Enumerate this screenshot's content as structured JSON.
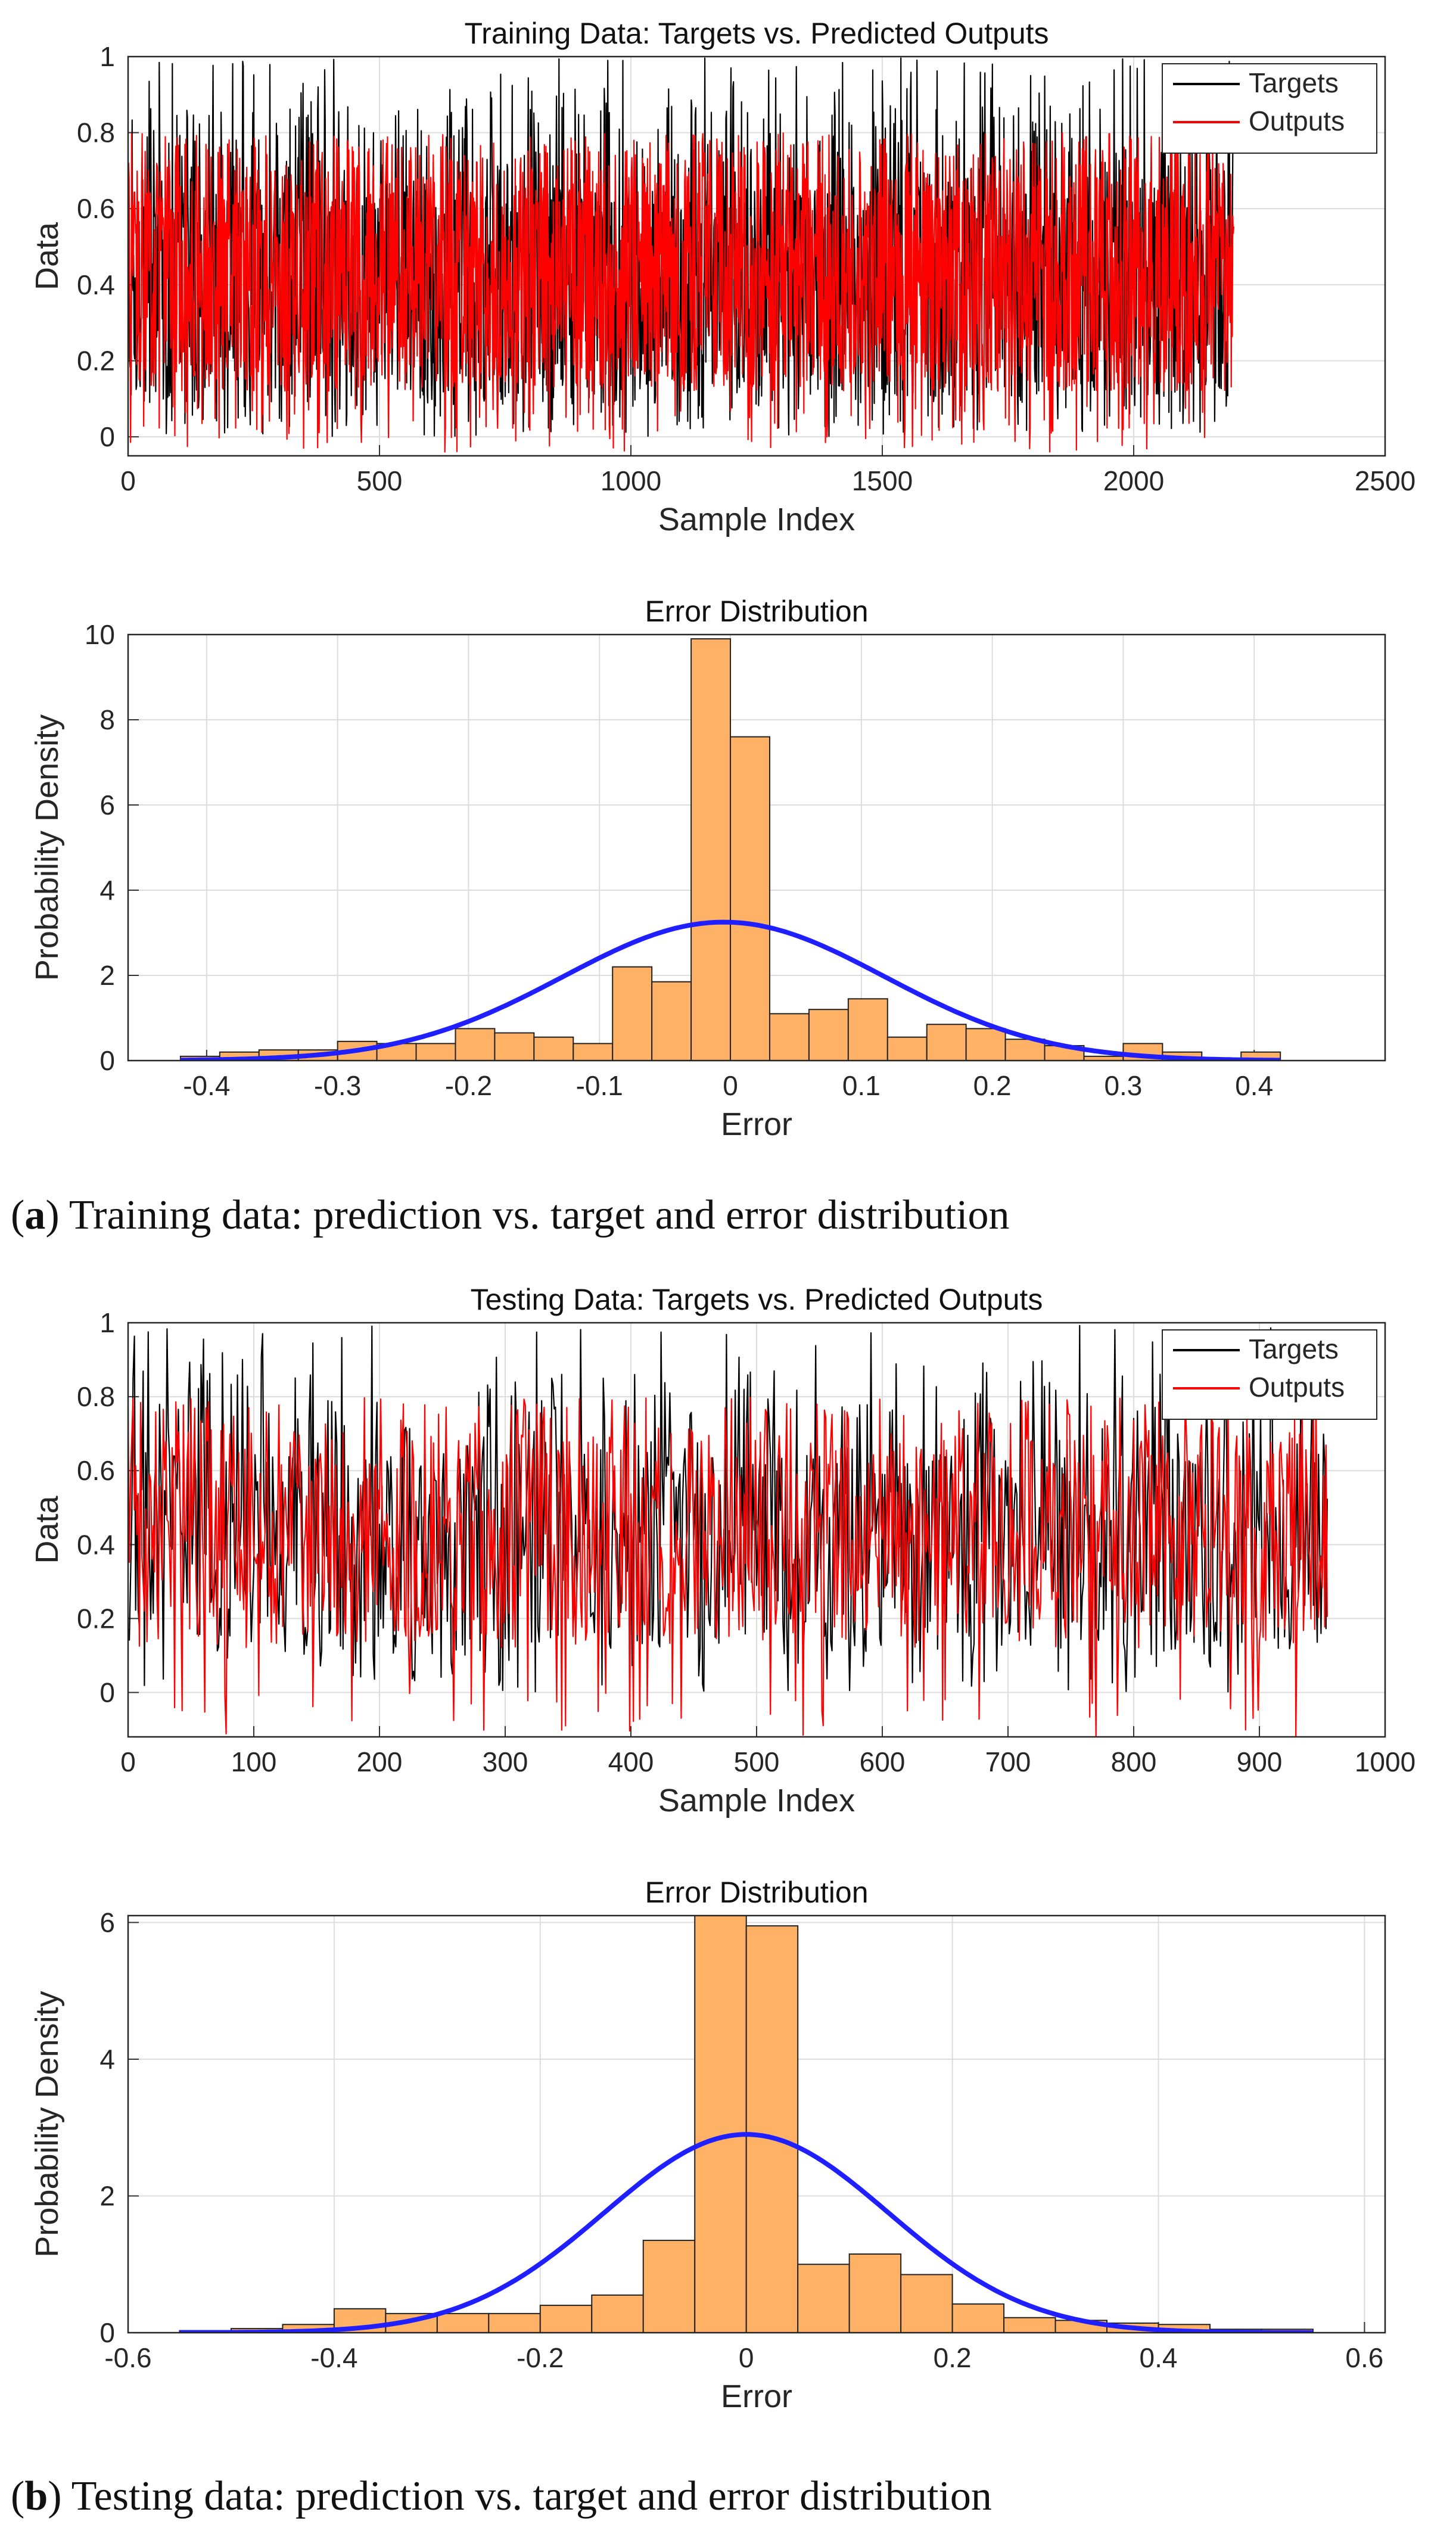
{
  "captions": [
    {
      "label": "a",
      "text": "Training data: prediction vs. target and error distribution"
    },
    {
      "label": "b",
      "text": "Testing data: prediction vs. target and error distribution"
    }
  ],
  "colors": {
    "targets": "#000000",
    "outputs": "#ff0000",
    "bars": "#ffb266",
    "bar_edge": "#222222",
    "fit": "#1f1fff",
    "grid": "#dcdcdc"
  },
  "chart_data": [
    {
      "type": "line",
      "title": "Training Data: Targets vs. Predicted Outputs",
      "xlabel": "Sample Index",
      "ylabel": "Data",
      "xlim": [
        0,
        2500
      ],
      "ylim": [
        -0.05,
        1.0
      ],
      "xticks": [
        "0",
        "500",
        "1000",
        "1500",
        "2000",
        "2500"
      ],
      "yticks": [
        "0",
        "0.2",
        "0.4",
        "0.6",
        "0.8",
        "1"
      ],
      "legend": {
        "position": "top-right",
        "entries": [
          "Targets",
          "Outputs"
        ]
      },
      "series": [
        {
          "name": "Targets",
          "n_points": 2200,
          "value_range": [
            0.0,
            1.0
          ]
        },
        {
          "name": "Outputs",
          "n_points": 2200,
          "value_range": [
            -0.04,
            0.8
          ]
        }
      ]
    },
    {
      "type": "bar",
      "title": "Error Distribution",
      "xlabel": "Error",
      "ylabel": "Probability Density",
      "xlim": [
        -0.46,
        0.5
      ],
      "ylim": [
        0,
        10
      ],
      "xticks": [
        "-0.4",
        "-0.3",
        "-0.2",
        "-0.1",
        "0",
        "0.1",
        "0.2",
        "0.3",
        "0.4"
      ],
      "yticks": [
        "0",
        "2",
        "4",
        "6",
        "8",
        "10"
      ],
      "bin_edges_start": -0.42,
      "bin_width": 0.03,
      "values": [
        0.1,
        0.2,
        0.25,
        0.25,
        0.45,
        0.4,
        0.4,
        0.75,
        0.65,
        0.55,
        0.4,
        2.2,
        1.85,
        9.9,
        7.6,
        1.1,
        1.2,
        1.45,
        0.55,
        0.85,
        0.75,
        0.5,
        0.35,
        0.1,
        0.4,
        0.2,
        0.05,
        0.2
      ],
      "fit": {
        "type": "normal",
        "mean": -0.005,
        "peak_density": 3.25
      }
    },
    {
      "type": "line",
      "title": "Testing Data: Targets vs. Predicted Outputs",
      "xlabel": "Sample Index",
      "ylabel": "Data",
      "xlim": [
        0,
        1000
      ],
      "ylim": [
        -0.12,
        1.0
      ],
      "xticks": [
        "0",
        "100",
        "200",
        "300",
        "400",
        "500",
        "600",
        "700",
        "800",
        "900",
        "1000"
      ],
      "yticks": [
        "0",
        "0.2",
        "0.4",
        "0.6",
        "0.8",
        "1"
      ],
      "legend": {
        "position": "top-right",
        "entries": [
          "Targets",
          "Outputs"
        ]
      },
      "series": [
        {
          "name": "Targets",
          "n_points": 955,
          "value_range": [
            0.0,
            1.0
          ]
        },
        {
          "name": "Outputs",
          "n_points": 955,
          "value_range": [
            -0.12,
            0.8
          ]
        }
      ]
    },
    {
      "type": "bar",
      "title": "Error Distribution",
      "xlabel": "Error",
      "ylabel": "Probability Density",
      "xlim": [
        -0.6,
        0.62
      ],
      "ylim": [
        0,
        6.1
      ],
      "xticks": [
        "-0.6",
        "-0.4",
        "-0.2",
        "0",
        "0.2",
        "0.4",
        "0.6"
      ],
      "yticks": [
        "0",
        "2",
        "4",
        "6"
      ],
      "bin_edges_start": -0.55,
      "bin_width": 0.05,
      "values": [
        0.03,
        0.06,
        0.12,
        0.35,
        0.28,
        0.28,
        0.28,
        0.4,
        0.55,
        1.35,
        6.1,
        5.95,
        1.0,
        1.15,
        0.85,
        0.42,
        0.22,
        0.18,
        0.14,
        0.12,
        0.05,
        0.05
      ],
      "fit": {
        "type": "normal",
        "mean": 0.0,
        "peak_density": 2.9
      }
    }
  ]
}
